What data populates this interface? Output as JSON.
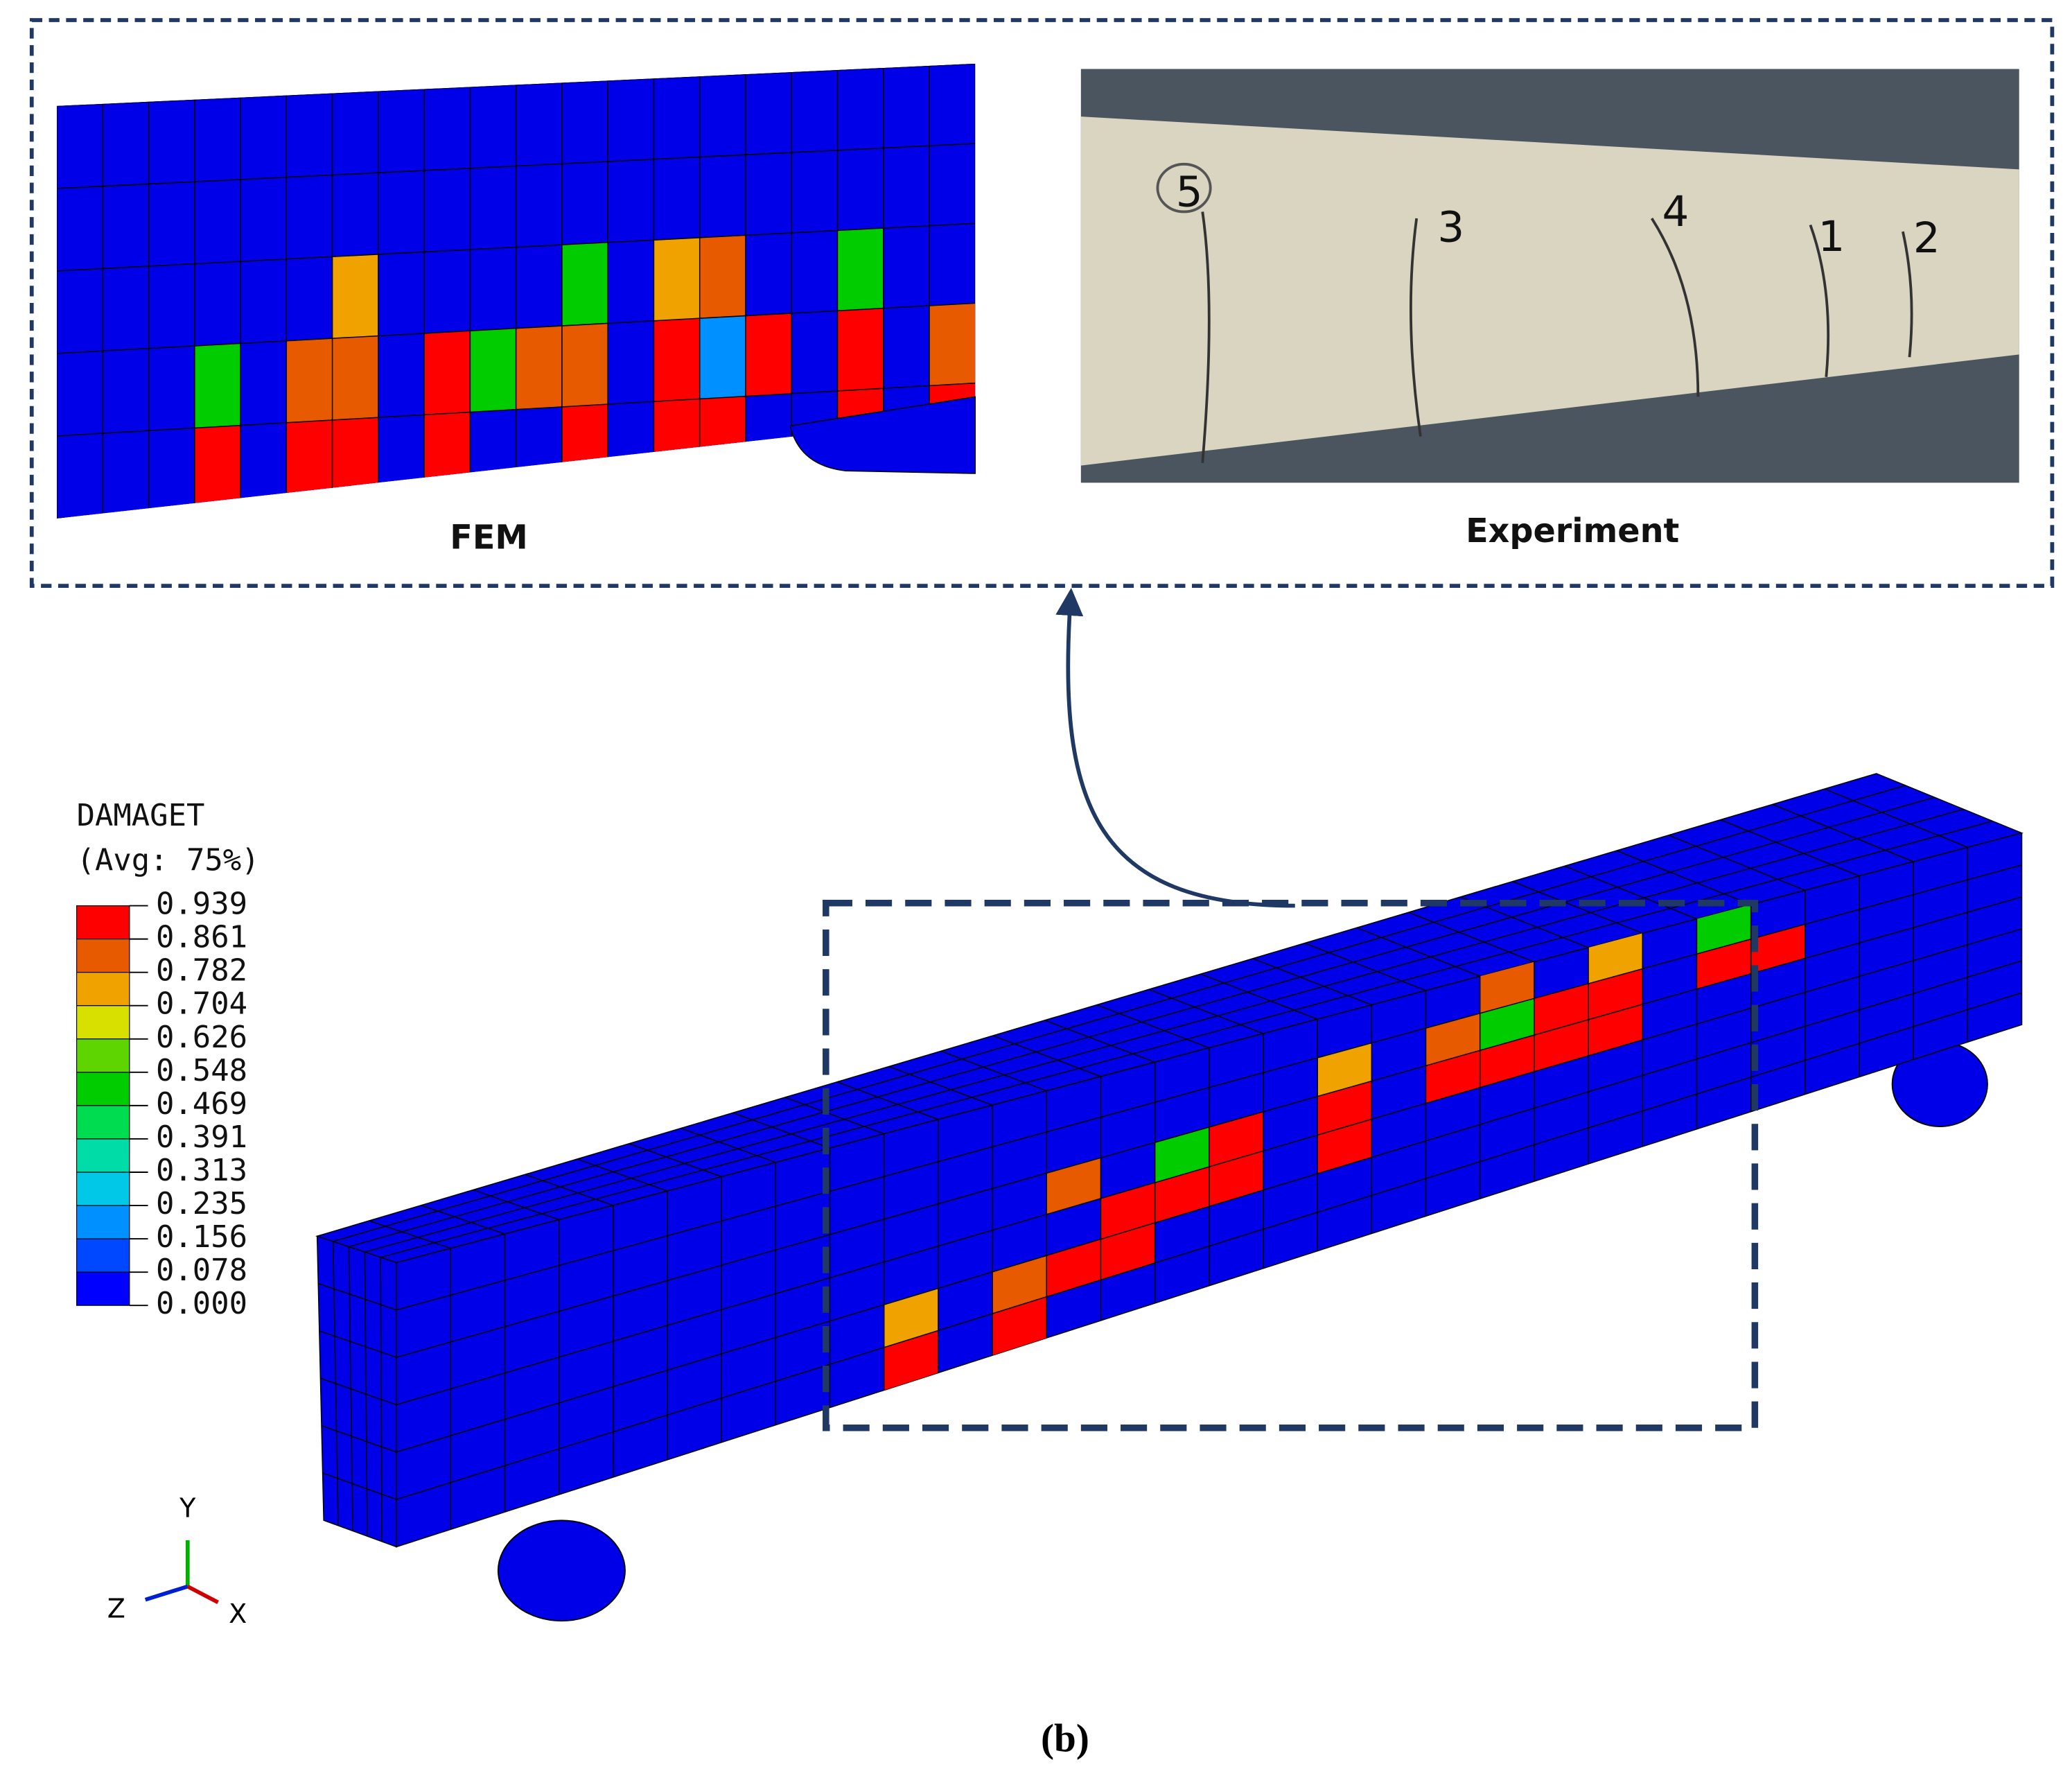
{
  "panels": {
    "fem_label": "FEM",
    "experiment_label": "Experiment",
    "crack_labels": [
      "5",
      "3",
      "4",
      "1",
      "2"
    ]
  },
  "legend": {
    "title": "DAMAGET",
    "subtitle": "(Avg: 75%)",
    "labels": [
      "0.939",
      "0.861",
      "0.782",
      "0.704",
      "0.626",
      "0.548",
      "0.469",
      "0.391",
      "0.313",
      "0.235",
      "0.156",
      "0.078",
      "0.000"
    ],
    "colors": [
      "#ff0000",
      "#e85a00",
      "#f0a200",
      "#d8e000",
      "#5ed400",
      "#00cc00",
      "#00dc50",
      "#00dca8",
      "#00c8e6",
      "#0090ff",
      "#0048ff",
      "#0000ff"
    ]
  },
  "triad": {
    "y": "Y",
    "z": "Z",
    "x": "X"
  },
  "caption": "(b)"
}
